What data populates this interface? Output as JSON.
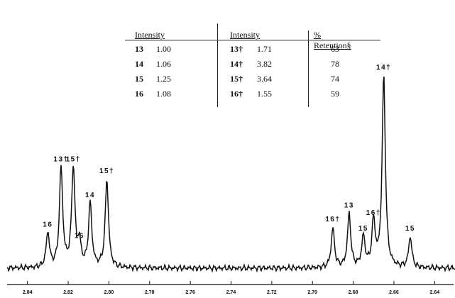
{
  "table": {
    "headers": [
      "Intensity",
      "Intensity",
      "% Retention§"
    ],
    "rows": [
      {
        "cmp": "13",
        "val": "1.00",
        "cmp2": "13†",
        "val2": "1.71",
        "ret": "63"
      },
      {
        "cmp": "14",
        "val": "1.06",
        "cmp2": "14†",
        "val2": "3.82",
        "ret": "78"
      },
      {
        "cmp": "15",
        "val": "1.25",
        "cmp2": "15†",
        "val2": "3.64",
        "ret": "74"
      },
      {
        "cmp": "16",
        "val": "1.08",
        "cmp2": "16†",
        "val2": "1.55",
        "ret": "59"
      }
    ]
  },
  "chart_data": {
    "type": "line",
    "title": "",
    "xlabel": "",
    "ylabel": "",
    "x_direction": "descending",
    "xlim": [
      2.85,
      2.63
    ],
    "x_ticks": [
      "2.84",
      "2.82",
      "2.80",
      "2.78",
      "2.76",
      "2.74",
      "2.72",
      "2.70",
      "2.68",
      "2.66",
      "2.64"
    ],
    "peaks": [
      {
        "label": "16",
        "x": 2.83,
        "height": 0.27
      },
      {
        "label": "13†",
        "x": 2.8235,
        "height": 0.78
      },
      {
        "label": "15†",
        "x": 2.8175,
        "height": 0.78
      },
      {
        "label": "16",
        "x": 2.8145,
        "height": 0.18
      },
      {
        "label": "14",
        "x": 2.8092,
        "height": 0.5
      },
      {
        "label": "15†",
        "x": 2.801,
        "height": 0.69
      },
      {
        "label": "16†",
        "x": 2.69,
        "height": 0.31
      },
      {
        "label": "13",
        "x": 2.682,
        "height": 0.42
      },
      {
        "label": "15",
        "x": 2.675,
        "height": 0.24
      },
      {
        "label": "16†",
        "x": 2.67,
        "height": 0.36
      },
      {
        "label": "14†",
        "x": 2.665,
        "height": 1.5
      },
      {
        "label": "15",
        "x": 2.652,
        "height": 0.24
      }
    ]
  },
  "colors": {
    "ink": "#111111",
    "background": "#ffffff"
  }
}
